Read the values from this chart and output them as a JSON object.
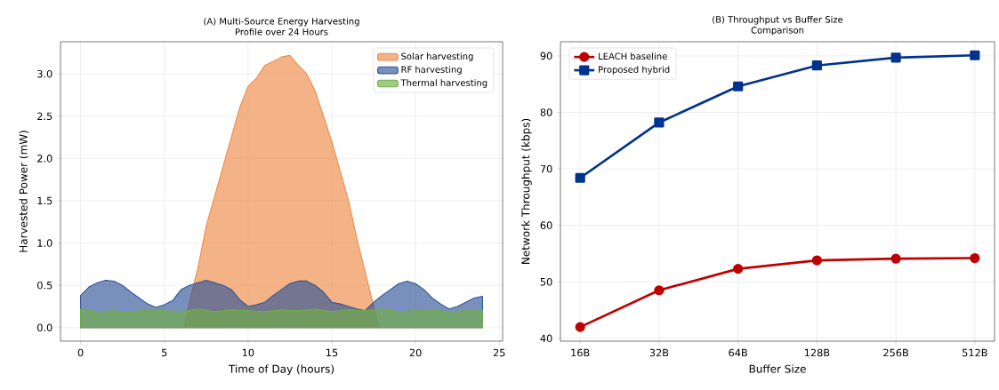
{
  "chart_data": [
    {
      "type": "area",
      "title": "(A) Multi-Source Energy Harvesting",
      "subtitle": "Profile over 24 Hours",
      "xlabel": "Time of Day (hours)",
      "ylabel": "Harvested Power (mW)",
      "xlim": [
        -1.2,
        25.2
      ],
      "ylim": [
        -0.16,
        3.38
      ],
      "xticks": [
        0,
        5,
        10,
        15,
        20,
        25
      ],
      "yticks": [
        {
          "value": 0,
          "label": "0.0"
        },
        {
          "value": 0.5,
          "label": "0.5"
        },
        {
          "value": 1,
          "label": "1.0"
        },
        {
          "value": 1.5,
          "label": "1.5"
        },
        {
          "value": 2,
          "label": "2.0"
        },
        {
          "value": 2.5,
          "label": "2.5"
        },
        {
          "value": 3,
          "label": "3.0"
        }
      ],
      "grid": true,
      "legend": "top right",
      "series": [
        {
          "name": "Solar harvesting",
          "color": "#ed8a45",
          "x": [
            0,
            6.2,
            6.5,
            7,
            7.5,
            8,
            8.5,
            9,
            9.5,
            10,
            10.5,
            11,
            11.5,
            12,
            12.5,
            13,
            13.5,
            14,
            14.5,
            15,
            15.5,
            16,
            16.5,
            17,
            17.5,
            17.8,
            24
          ],
          "values": [
            0,
            0,
            0.3,
            0.7,
            1.2,
            1.55,
            1.9,
            2.25,
            2.6,
            2.85,
            2.95,
            3.1,
            3.15,
            3.2,
            3.22,
            3.1,
            3.0,
            2.8,
            2.5,
            2.2,
            1.85,
            1.5,
            1.05,
            0.65,
            0.25,
            0,
            0
          ]
        },
        {
          "name": "RF harvesting",
          "color": "#2f5597",
          "x": [
            0,
            0.5,
            1,
            1.5,
            2,
            2.5,
            3,
            3.5,
            4,
            4.5,
            5,
            5.5,
            6,
            6.5,
            7,
            7.5,
            8,
            8.5,
            9,
            9.5,
            10,
            10.5,
            11,
            11.5,
            12,
            12.5,
            13,
            13.5,
            14,
            14.5,
            15,
            15.5,
            16,
            16.5,
            17,
            17.5,
            18,
            18.5,
            19,
            19.5,
            20,
            20.5,
            21,
            21.5,
            22,
            22.5,
            23,
            23.5,
            24
          ],
          "values": [
            0.38,
            0.48,
            0.53,
            0.56,
            0.55,
            0.5,
            0.42,
            0.35,
            0.28,
            0.24,
            0.27,
            0.32,
            0.45,
            0.5,
            0.53,
            0.56,
            0.53,
            0.5,
            0.45,
            0.33,
            0.25,
            0.27,
            0.3,
            0.38,
            0.45,
            0.52,
            0.55,
            0.55,
            0.5,
            0.42,
            0.3,
            0.28,
            0.25,
            0.22,
            0.2,
            0.3,
            0.38,
            0.45,
            0.52,
            0.55,
            0.52,
            0.45,
            0.35,
            0.28,
            0.22,
            0.25,
            0.3,
            0.35,
            0.37
          ]
        },
        {
          "name": "Thermal harvesting",
          "color": "#70ad47",
          "x": [
            0,
            1,
            2,
            3,
            4,
            5,
            6,
            7,
            8,
            9,
            10,
            11,
            12,
            13,
            14,
            15,
            16,
            17,
            18,
            19,
            20,
            21,
            22,
            23,
            24
          ],
          "values": [
            0.22,
            0.19,
            0.2,
            0.18,
            0.21,
            0.2,
            0.19,
            0.22,
            0.19,
            0.21,
            0.2,
            0.19,
            0.21,
            0.2,
            0.22,
            0.19,
            0.21,
            0.2,
            0.22,
            0.19,
            0.2,
            0.21,
            0.19,
            0.2,
            0.2
          ]
        }
      ]
    },
    {
      "type": "line",
      "title": "(B) Throughput vs Buffer Size",
      "subtitle": "Comparison",
      "xlabel": "Buffer Size",
      "ylabel": "Network Throughput (kbps)",
      "categories": [
        "16B",
        "32B",
        "64B",
        "128B",
        "256B",
        "512B"
      ],
      "ylim": [
        39.5,
        92.5
      ],
      "yticks": [
        40,
        50,
        60,
        70,
        80,
        90
      ],
      "grid": true,
      "legend": "top left",
      "line_style": "solid",
      "series": [
        {
          "name": "LEACH baseline",
          "color": "#c00000",
          "marker": "circle",
          "values": [
            42,
            48.5,
            52.3,
            53.8,
            54.1,
            54.2
          ]
        },
        {
          "name": "Proposed hybrid",
          "color": "#00338d",
          "marker": "square",
          "values": [
            68.4,
            78.2,
            84.6,
            88.3,
            89.7,
            90.1
          ]
        }
      ]
    }
  ]
}
